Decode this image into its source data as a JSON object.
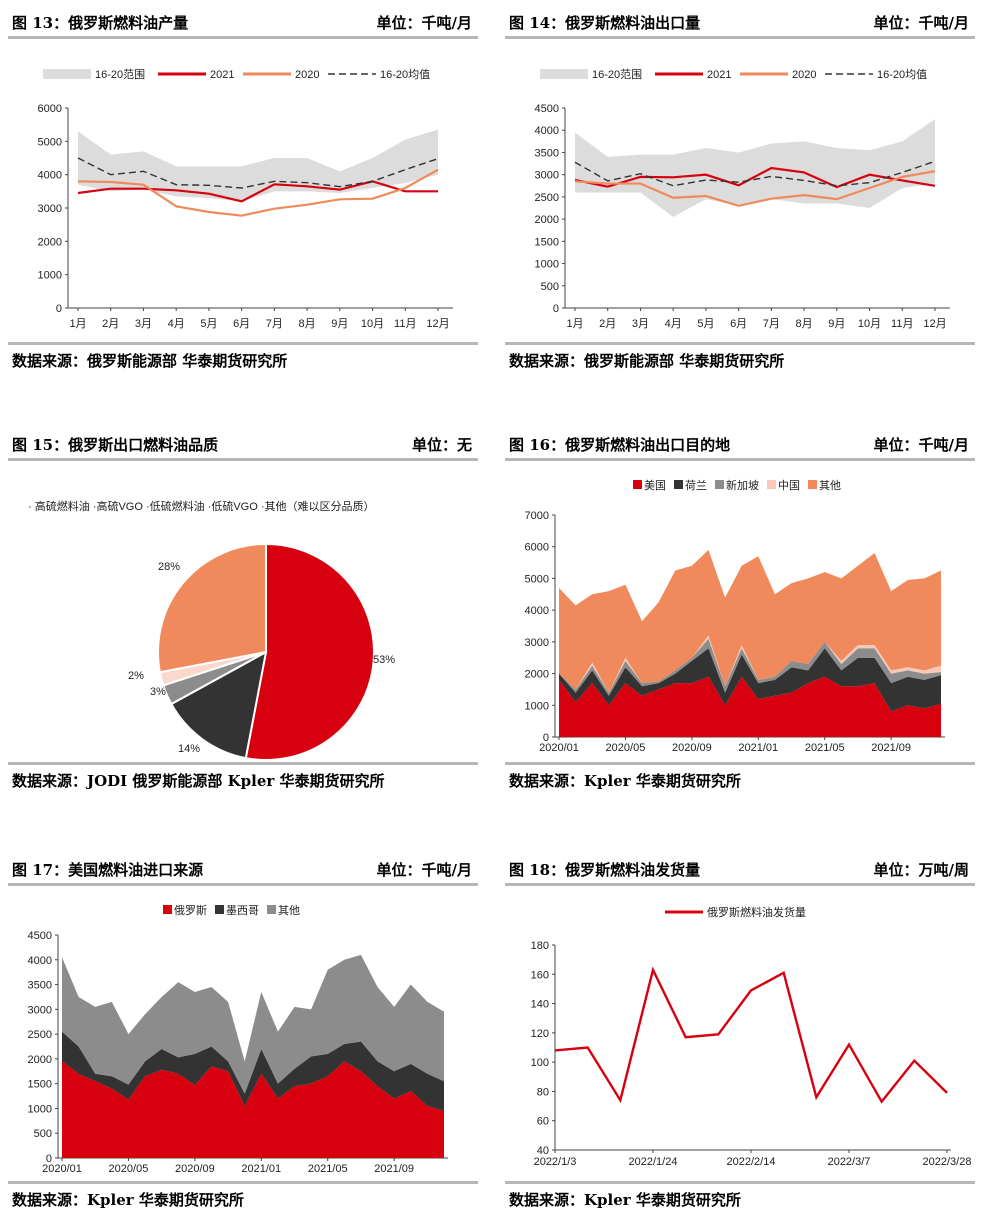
{
  "colors": {
    "red": "#d7000f",
    "salmon": "#f08a5d",
    "dark": "#333333",
    "gray": "#8c8c8c",
    "band": "#dcdcdc",
    "pink": "#f8c9b8",
    "pink2": "#fbd8cb",
    "orange": "#f08a5d"
  },
  "panels": [
    {
      "title": "图 13：俄罗斯燃料油产量",
      "unit": "单位：千吨/月",
      "source": "数据来源：俄罗斯能源部 华泰期货研究所",
      "chart_data": {
        "type": "line",
        "categories": [
          "1月",
          "2月",
          "3月",
          "4月",
          "5月",
          "6月",
          "7月",
          "8月",
          "9月",
          "10月",
          "11月",
          "12月"
        ],
        "ylim": [
          0,
          6000
        ],
        "yticks": [
          0,
          1000,
          2000,
          3000,
          4000,
          5000,
          6000
        ],
        "legend": [
          "16-20范围",
          "2021",
          "2020",
          "16-20均值"
        ],
        "band": {
          "name": "16-20范围",
          "low": [
            3700,
            3500,
            3550,
            3350,
            3300,
            3200,
            3500,
            3500,
            3450,
            3600,
            3750,
            4000
          ],
          "high": [
            5300,
            4600,
            4700,
            4250,
            4250,
            4250,
            4500,
            4500,
            4100,
            4500,
            5050,
            5350
          ]
        },
        "series": [
          {
            "name": "2021",
            "values": [
              3450,
              3580,
              3580,
              3530,
              3430,
              3200,
              3710,
              3650,
              3550,
              3800,
              3500,
              3500
            ]
          },
          {
            "name": "2020",
            "values": [
              3800,
              3780,
              3700,
              3050,
              2880,
              2770,
              2980,
              3100,
              3260,
              3280,
              3600,
              4150
            ]
          },
          {
            "name": "16-20均值",
            "values": [
              4500,
              4000,
              4100,
              3700,
              3680,
              3600,
              3800,
              3760,
              3640,
              3800,
              4150,
              4480
            ]
          }
        ]
      }
    },
    {
      "title": "图 14：俄罗斯燃料油出口量",
      "unit": "单位：千吨/月",
      "source": "数据来源：俄罗斯能源部 华泰期货研究所",
      "chart_data": {
        "type": "line",
        "categories": [
          "1月",
          "2月",
          "3月",
          "4月",
          "5月",
          "6月",
          "7月",
          "8月",
          "9月",
          "10月",
          "11月",
          "12月"
        ],
        "ylim": [
          0,
          4500
        ],
        "yticks": [
          0,
          500,
          1000,
          1500,
          2000,
          2500,
          3000,
          3500,
          4000,
          4500
        ],
        "legend": [
          "16-20范围",
          "2021",
          "2020",
          "16-20均值"
        ],
        "band": {
          "name": "16-20范围",
          "low": [
            2600,
            2600,
            2600,
            2050,
            2450,
            2300,
            2450,
            2350,
            2350,
            2250,
            2700,
            2800
          ],
          "high": [
            3950,
            3400,
            3450,
            3450,
            3600,
            3500,
            3700,
            3750,
            3600,
            3550,
            3750,
            4250
          ]
        },
        "series": [
          {
            "name": "2021",
            "values": [
              2880,
              2730,
              2950,
              2940,
              3000,
              2760,
              3150,
              3050,
              2720,
              3000,
              2870,
              2750
            ]
          },
          {
            "name": "2020",
            "values": [
              2850,
              2800,
              2800,
              2480,
              2520,
              2300,
              2460,
              2540,
              2450,
              2700,
              2950,
              3080
            ]
          },
          {
            "name": "16-20均值",
            "values": [
              3280,
              2860,
              3020,
              2750,
              2880,
              2830,
              2960,
              2870,
              2750,
              2820,
              3050,
              3300
            ]
          }
        ]
      }
    },
    {
      "title": "图 15：俄罗斯出口燃料油品质",
      "unit": "单位：无",
      "source": "数据来源：JODI 俄罗斯能源部 Kpler 华泰期货研究所",
      "chart_data": {
        "type": "pie",
        "legend_text": "高硫燃料油 ·高硫VGO ·低硫燃料油 ·低硫VGO ·其他（难以区分品质）",
        "slices": [
          {
            "name": "高硫燃料油",
            "value": 53,
            "label": "53%"
          },
          {
            "name": "高硫VGO",
            "value": 14,
            "label": "14%"
          },
          {
            "name": "低硫燃料油",
            "value": 3,
            "label": "3%"
          },
          {
            "name": "低硫VGO",
            "value": 2,
            "label": "2%"
          },
          {
            "name": "其他（难以区分品质）",
            "value": 28,
            "label": "28%"
          }
        ]
      }
    },
    {
      "title": "图 16：俄罗斯燃料油出口目的地",
      "unit": "单位：千吨/月",
      "source": "数据来源：Kpler 华泰期货研究所",
      "chart_data": {
        "type": "area",
        "xticks": [
          "2020/01",
          "2020/05",
          "2020/09",
          "2021/01",
          "2021/05",
          "2021/09"
        ],
        "ylim": [
          0,
          7000
        ],
        "yticks": [
          0,
          1000,
          2000,
          3000,
          4000,
          5000,
          6000,
          7000
        ],
        "legend": [
          "美国",
          "荷兰",
          "新加坡",
          "中国",
          "其他"
        ],
        "x_count": 24,
        "totals": [
          4700,
          4150,
          4500,
          4600,
          4800,
          3650,
          4250,
          5250,
          5400,
          5900,
          4400,
          5400,
          5700,
          4500,
          4850,
          5000,
          5200,
          5000,
          5400,
          5800,
          4600,
          4950,
          5000,
          5250
        ],
        "series": [
          {
            "name": "美国",
            "values": [
              1800,
              1100,
              1700,
              1000,
              1700,
              1300,
              1500,
              1700,
              1700,
              1900,
              1000,
              1900,
              1200,
              1300,
              1400,
              1700,
              1900,
              1600,
              1600,
              1700,
              800,
              1000,
              900,
              1050
            ]
          },
          {
            "name": "荷兰",
            "values": [
              200,
              300,
              400,
              300,
              500,
              300,
              200,
              300,
              700,
              900,
              400,
              700,
              500,
              500,
              800,
              400,
              900,
              500,
              900,
              800,
              900,
              900,
              900,
              900
            ]
          },
          {
            "name": "新加坡",
            "values": [
              0,
              100,
              150,
              100,
              200,
              100,
              50,
              100,
              100,
              300,
              200,
              200,
              100,
              100,
              200,
              200,
              200,
              200,
              300,
              300,
              300,
              200,
              200,
              100
            ]
          },
          {
            "name": "中国",
            "values": [
              0,
              0,
              100,
              0,
              100,
              0,
              0,
              0,
              0,
              100,
              0,
              100,
              0,
              0,
              0,
              0,
              0,
              100,
              100,
              100,
              100,
              100,
              100,
              200
            ]
          },
          {
            "name": "其他",
            "values": [
              2700,
              2650,
              2150,
              3200,
              2300,
              1950,
              2500,
              3150,
              2900,
              2700,
              2800,
              2500,
              3900,
              2600,
              2450,
              2700,
              2200,
              2600,
              2500,
              2900,
              2500,
              2750,
              2900,
              3000
            ]
          }
        ]
      }
    },
    {
      "title": "图 17：美国燃料油进口来源",
      "unit": "单位：千吨/月",
      "source": "数据来源：Kpler 华泰期货研究所",
      "chart_data": {
        "type": "area",
        "xticks": [
          "2020/01",
          "2020/05",
          "2020/09",
          "2021/01",
          "2021/05",
          "2021/09"
        ],
        "ylim": [
          0,
          4500
        ],
        "yticks": [
          0,
          500,
          1000,
          1500,
          2000,
          2500,
          3000,
          3500,
          4000,
          4500
        ],
        "legend": [
          "俄罗斯",
          "墨西哥",
          "其他"
        ],
        "x_count": 24,
        "totals": [
          4050,
          3250,
          3050,
          3150,
          2500,
          2900,
          3250,
          3550,
          3350,
          3450,
          3150,
          1950,
          3350,
          2550,
          3050,
          3000,
          3800,
          4000,
          4100,
          3450,
          3050,
          3500,
          3150,
          2950
        ],
        "series": [
          {
            "name": "俄罗斯",
            "values": [
              1950,
              1700,
              1550,
              1400,
              1180,
              1650,
              1780,
              1700,
              1470,
              1850,
              1750,
              1050,
              1700,
              1200,
              1450,
              1500,
              1650,
              1950,
              1750,
              1450,
              1200,
              1350,
              1050,
              950
            ]
          },
          {
            "name": "墨西哥",
            "values": [
              600,
              550,
              150,
              250,
              300,
              300,
              420,
              330,
              630,
              400,
              200,
              250,
              500,
              300,
              350,
              550,
              450,
              350,
              600,
              500,
              550,
              550,
              650,
              600
            ]
          },
          {
            "name": "其他",
            "values": [
              1500,
              1000,
              1350,
              1500,
              1020,
              950,
              1050,
              1520,
              1250,
              1200,
              1200,
              650,
              1150,
              1050,
              1250,
              950,
              1700,
              1700,
              1750,
              1500,
              1300,
              1600,
              1450,
              1400
            ]
          }
        ]
      }
    },
    {
      "title": "图 18：俄罗斯燃料油发货量",
      "unit": "单位：万吨/周",
      "source": "数据来源：Kpler 华泰期货研究所",
      "chart_data": {
        "type": "line",
        "ylim": [
          40,
          180
        ],
        "yticks": [
          40,
          60,
          80,
          100,
          120,
          140,
          160,
          180
        ],
        "xticks": [
          "2022/1/3",
          "2022/1/24",
          "2022/2/14",
          "2022/3/7",
          "2022/3/28"
        ],
        "legend": [
          "俄罗斯燃料油发货量"
        ],
        "series": [
          {
            "name": "俄罗斯燃料油发货量",
            "values": [
              108,
              110,
              74,
              163,
              117,
              119,
              149,
              161,
              76,
              112,
              73,
              101,
              79
            ]
          }
        ]
      }
    }
  ]
}
